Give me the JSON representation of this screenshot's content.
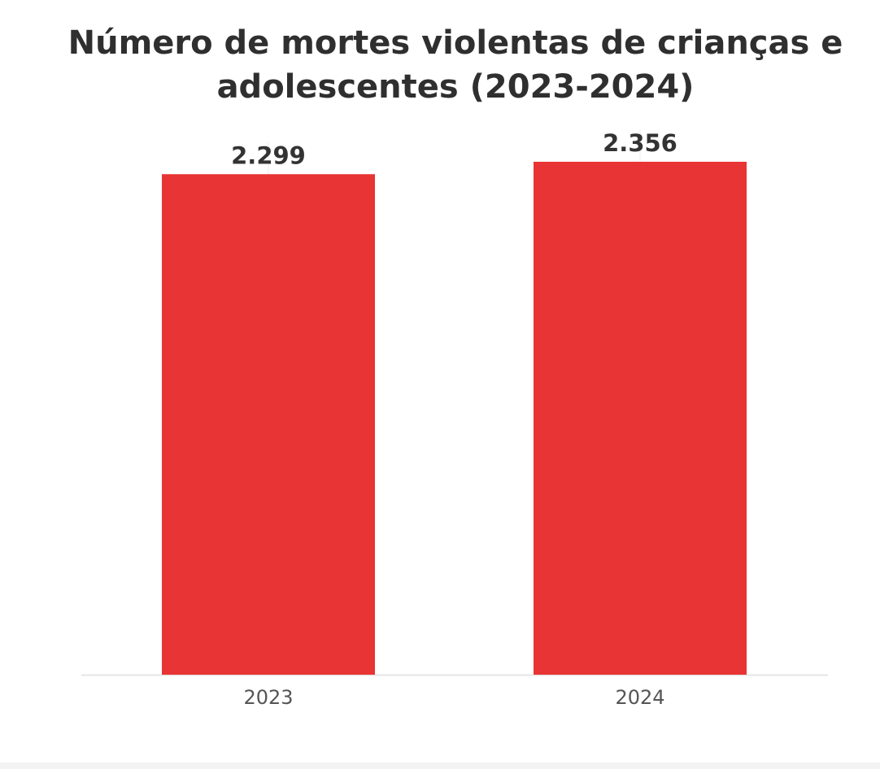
{
  "chart_data": {
    "type": "bar",
    "title": "Número de mortes violentas de crianças e adolescentes (2023-2024)",
    "categories": [
      "2023",
      "2024"
    ],
    "values": [
      2299,
      2356
    ],
    "data_labels": [
      "2.299",
      "2.356"
    ],
    "xlabel": "",
    "ylabel": "",
    "ylim": [
      0,
      2600
    ],
    "grid": false,
    "legend": "none",
    "bar_color": "#e83434",
    "title_color": "#2f2f2f",
    "label_color": "#333333",
    "tick_color": "#555555",
    "axis_color": "#e6e6e6"
  }
}
